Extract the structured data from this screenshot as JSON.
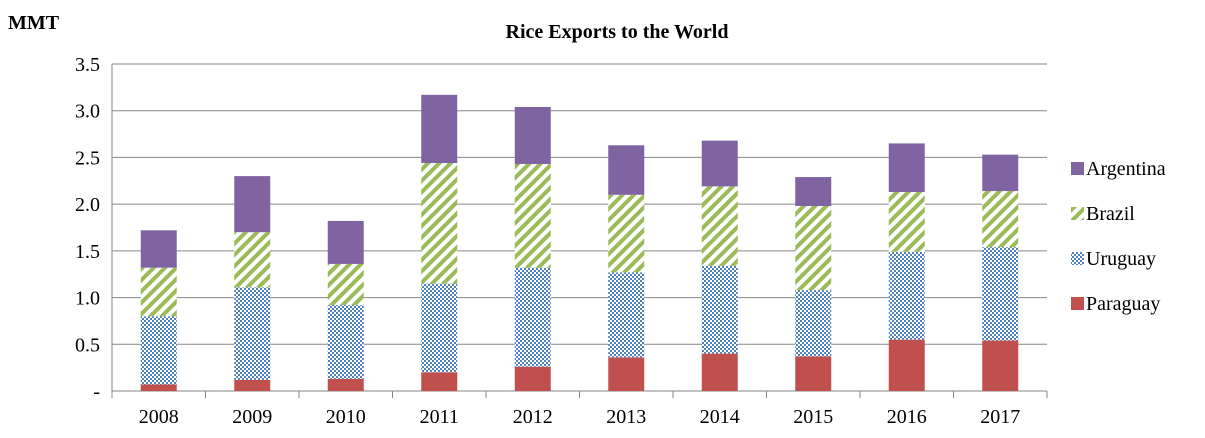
{
  "chart_data": {
    "type": "bar",
    "stacked": true,
    "title": "Rice Exports to the World",
    "unit_label": "MMT",
    "categories": [
      "2008",
      "2009",
      "2010",
      "2011",
      "2012",
      "2013",
      "2014",
      "2015",
      "2016",
      "2017"
    ],
    "ylim": [
      0,
      3.5
    ],
    "yticks": [
      0,
      0.5,
      1.0,
      1.5,
      2.0,
      2.5,
      3.0,
      3.5
    ],
    "ytick_labels": [
      "-",
      "0.5",
      "1.0",
      "1.5",
      "2.0",
      "2.5",
      "3.0",
      "3.5"
    ],
    "grid": true,
    "legend_position": "right",
    "series": [
      {
        "name": "Paraguay",
        "color": "#c0504d",
        "pattern": "solid",
        "values": [
          0.07,
          0.12,
          0.13,
          0.2,
          0.26,
          0.36,
          0.4,
          0.37,
          0.55,
          0.54
        ]
      },
      {
        "name": "Uruguay",
        "color": "#4f81bd",
        "pattern": "checker",
        "values": [
          0.73,
          0.99,
          0.79,
          0.95,
          1.06,
          0.91,
          0.94,
          0.71,
          0.94,
          1.0
        ]
      },
      {
        "name": "Brazil",
        "color": "#9bbb59",
        "pattern": "diagonal",
        "values": [
          0.52,
          0.59,
          0.44,
          1.29,
          1.11,
          0.83,
          0.85,
          0.9,
          0.64,
          0.6
        ]
      },
      {
        "name": "Argentina",
        "color": "#8064a2",
        "pattern": "solid",
        "values": [
          0.4,
          0.6,
          0.46,
          0.73,
          0.61,
          0.53,
          0.49,
          0.31,
          0.52,
          0.39
        ]
      }
    ]
  }
}
